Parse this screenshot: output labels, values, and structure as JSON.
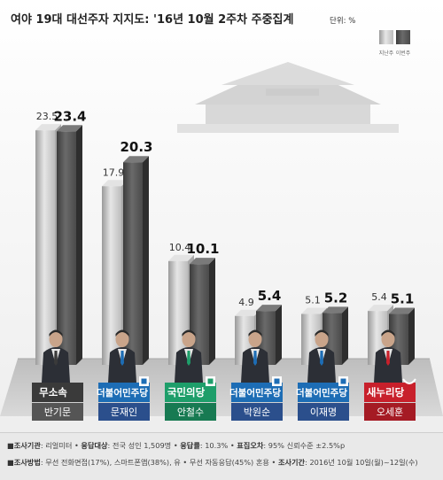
{
  "header": {
    "title": "여야 19대 대선주자 지지도: '16년 10월 2주차 주중집계",
    "unit": "단위: %"
  },
  "legend": {
    "prev_label": "지난주",
    "cur_label": "이번주",
    "prev_color": "#c8c8c8",
    "cur_color": "#555555"
  },
  "chart_data": {
    "type": "bar",
    "title": "여야 19대 대선주자 지지도: '16년 10월 2주차 주중집계",
    "unit": "단위: %",
    "categories": [
      "반기문",
      "문재인",
      "안철수",
      "박원순",
      "이재명",
      "오세훈"
    ],
    "parties": [
      "무소속",
      "더불어민주당",
      "국민의당",
      "더불어민주당",
      "더불어민주당",
      "새누리당"
    ],
    "series": [
      {
        "name": "지난주",
        "values": [
          23.5,
          17.9,
          10.4,
          4.9,
          5.1,
          5.4
        ]
      },
      {
        "name": "이번주",
        "values": [
          23.4,
          20.3,
          10.1,
          5.4,
          5.2,
          5.1
        ]
      }
    ],
    "value_labels_prev": [
      "23.5",
      "17.9",
      "10.4",
      "4.9",
      "5.1",
      "5.4"
    ],
    "value_labels_cur": [
      "23.4",
      "20.3",
      "10.1",
      "5.4",
      "5.2",
      "5.1"
    ]
  },
  "candidates": [
    {
      "name": "반기문",
      "party": "무소속",
      "party_color": "#3a3a3a",
      "name_bg": "#555555"
    },
    {
      "name": "문재인",
      "party": "더불어민주당",
      "party_color": "#1d6db5",
      "name_bg": "#2b4f8c"
    },
    {
      "name": "안철수",
      "party": "국민의당",
      "party_color": "#1e9e6a",
      "name_bg": "#177a52"
    },
    {
      "name": "박원순",
      "party": "더불어민주당",
      "party_color": "#1d6db5",
      "name_bg": "#2b4f8c"
    },
    {
      "name": "이재명",
      "party": "더불어민주당",
      "party_color": "#1d6db5",
      "name_bg": "#2b4f8c"
    },
    {
      "name": "오세훈",
      "party": "새누리당",
      "party_color": "#c8202b",
      "name_bg": "#a51b24"
    }
  ],
  "footer": {
    "line1": [
      {
        "key": "조사기관",
        "text": ": 리얼미터 • "
      },
      {
        "key": "응답대상",
        "text": ": 전국 성인 1,509명 • "
      },
      {
        "key": "응답률",
        "text": ": 10.3% • "
      },
      {
        "key": "표집오차",
        "text": ": 95% 신뢰수준 ±2.5%p"
      }
    ],
    "line2": [
      {
        "key": "조사방법",
        "text": ": 무선 전화면접(17%), 스마트폰앱(38%), 유 • 무선 자동응답(45%) 혼용 • "
      },
      {
        "key": "조사기간",
        "text": ": 2016년 10월 10일(월)~12일(수)"
      }
    ]
  }
}
